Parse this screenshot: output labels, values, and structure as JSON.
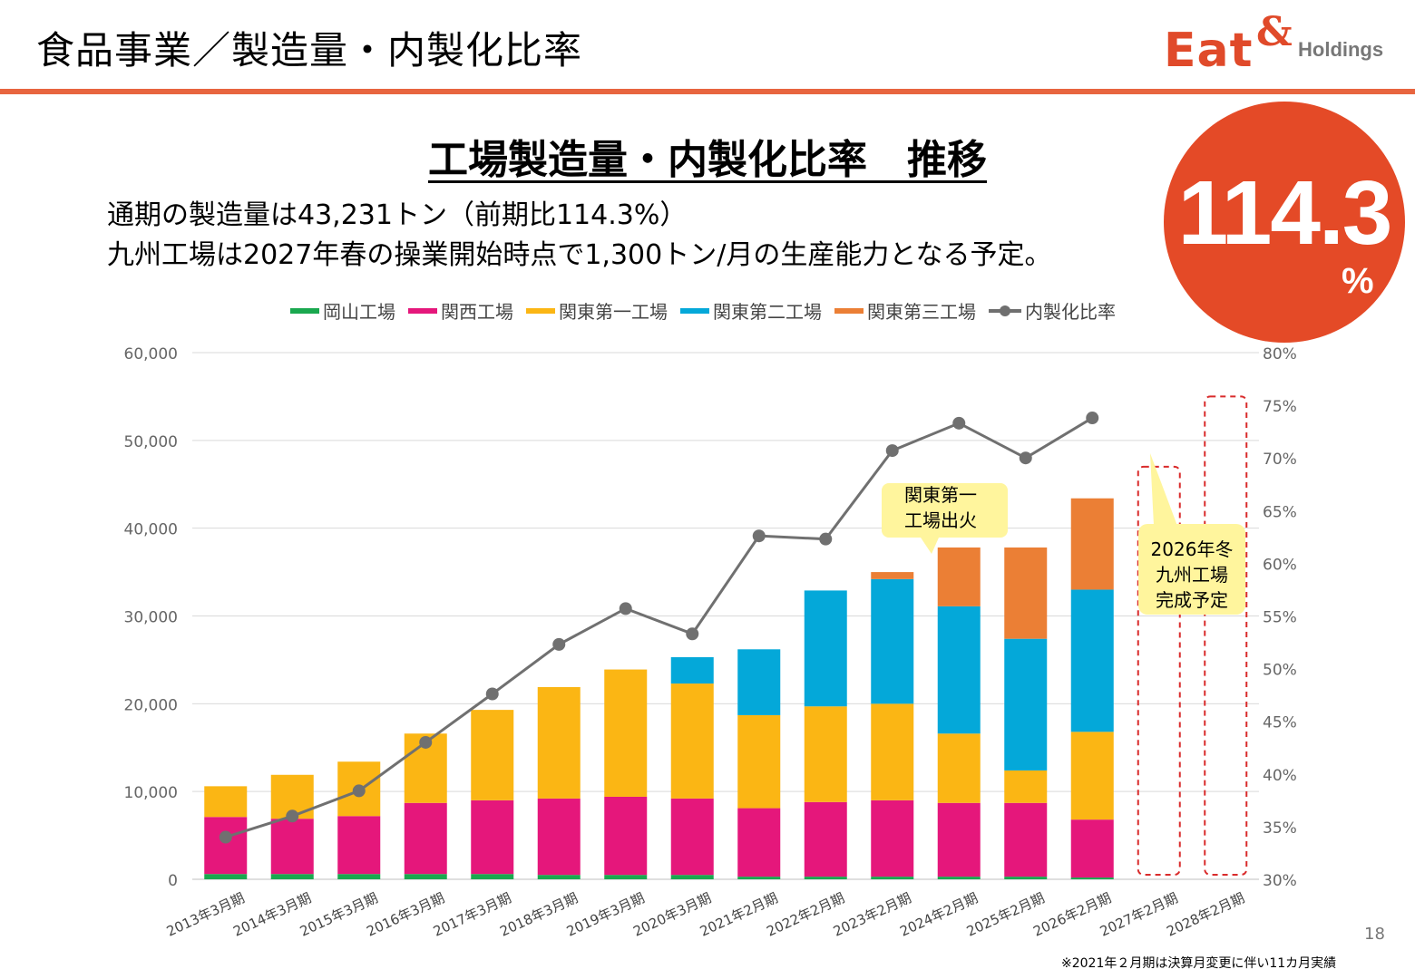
{
  "header": {
    "title": "食品事業／製造量・内製化比率"
  },
  "logo": {
    "eat": "Eat",
    "amp": "&",
    "holdings": "Holdings",
    "color": "#e04a2a"
  },
  "section_title": "工場製造量・内製化比率　推移",
  "description": {
    "line1": "通期の製造量は43,231トン（前期比114.3%）",
    "line2": "九州工場は2027年春の操業開始時点で1,300トン/月の生産能力となる予定。"
  },
  "badge": {
    "value": "114.3",
    "unit": "%",
    "color": "#e44a27"
  },
  "callouts": {
    "fire": {
      "line1": "関東第一",
      "line2": "工場出火"
    },
    "kyushu": {
      "line1": "2026年冬",
      "line2": "九州工場",
      "line3": "完成予定"
    }
  },
  "page_number": "18",
  "footnote": "※2021年２月期は決算月変更に伴い11カ月実績",
  "chart_data": {
    "type": "bar",
    "stacked": true,
    "categories": [
      "2013年3月期",
      "2014年3月期",
      "2015年3月期",
      "2016年3月期",
      "2017年3月期",
      "2018年3月期",
      "2019年3月期",
      "2020年3月期",
      "2021年2月期",
      "2022年2月期",
      "2023年2月期",
      "2024年2月期",
      "2025年2月期",
      "2026年2月期",
      "2027年2月期",
      "2028年2月期"
    ],
    "series": [
      {
        "name": "岡山工場",
        "color": "#1aa84f",
        "values": [
          600,
          600,
          600,
          600,
          600,
          500,
          500,
          500,
          300,
          300,
          300,
          300,
          300,
          200,
          null,
          null
        ]
      },
      {
        "name": "関西工場",
        "color": "#e5177b",
        "values": [
          6500,
          6300,
          6600,
          8100,
          8400,
          8700,
          8900,
          8700,
          7800,
          8500,
          8700,
          8400,
          8400,
          6600,
          null,
          null
        ]
      },
      {
        "name": "関東第一工場",
        "color": "#fbb614",
        "values": [
          3500,
          5000,
          6200,
          7900,
          10300,
          12700,
          14500,
          13100,
          10600,
          10900,
          11000,
          7900,
          3700,
          10000,
          null,
          null
        ]
      },
      {
        "name": "関東第二工場",
        "color": "#04a8d9",
        "values": [
          0,
          0,
          0,
          0,
          0,
          0,
          0,
          3000,
          7500,
          13200,
          14200,
          14500,
          15000,
          16200,
          null,
          null
        ]
      },
      {
        "name": "関東第三工場",
        "color": "#eb7f35",
        "values": [
          0,
          0,
          0,
          0,
          0,
          0,
          0,
          0,
          0,
          0,
          800,
          6700,
          10400,
          10400,
          null,
          null
        ]
      }
    ],
    "line": {
      "name": "内製化比率",
      "color": "#707070",
      "values": [
        0.34,
        0.36,
        0.384,
        0.43,
        0.476,
        0.523,
        0.557,
        0.533,
        0.626,
        0.623,
        0.707,
        0.733,
        0.7,
        0.738,
        null,
        null
      ]
    },
    "ylim": [
      0,
      60000
    ],
    "y_ticks": [
      "0",
      "10,000",
      "20,000",
      "30,000",
      "40,000",
      "50,000",
      "60,000"
    ],
    "y2lim": [
      0.3,
      0.8
    ],
    "y2_ticks": [
      "30%",
      "35%",
      "40%",
      "45%",
      "50%",
      "55%",
      "60%",
      "65%",
      "70%",
      "75%",
      "80%"
    ],
    "planned_2027": 2026.0,
    "legend_position": "top",
    "grid": true,
    "xlabel": "",
    "ylabel": ""
  }
}
